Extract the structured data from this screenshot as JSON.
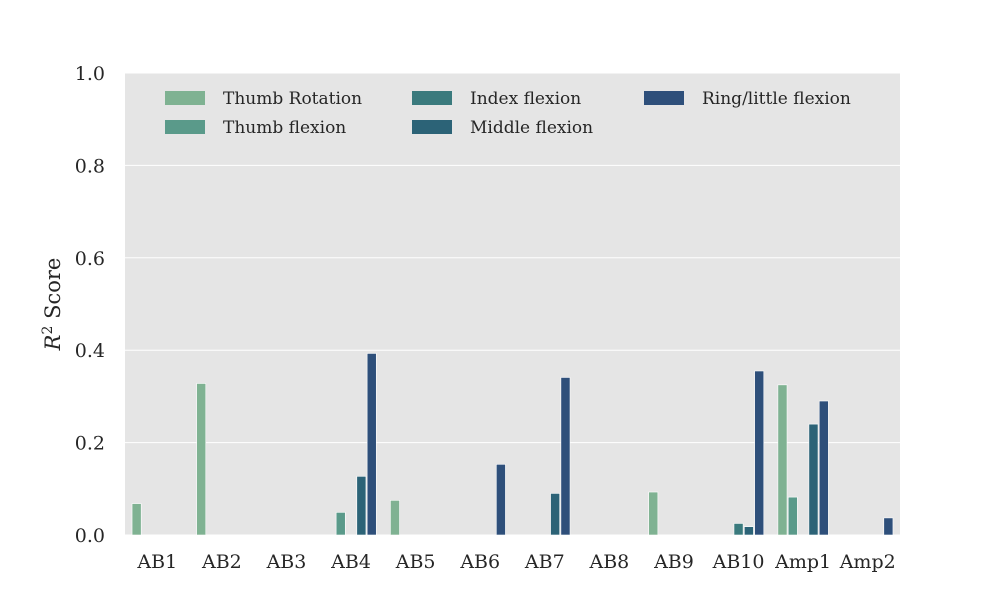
{
  "chart_data": {
    "type": "bar",
    "ylabel_main": "R",
    "ylabel_sup": "2",
    "ylabel_rest": " Score",
    "ylim": [
      0,
      1.0
    ],
    "yticks": [
      "0.0",
      "0.2",
      "0.4",
      "0.6",
      "0.8",
      "1.0"
    ],
    "grid": true,
    "legend_placement": "top",
    "categories": [
      "AB1",
      "AB2",
      "AB3",
      "AB4",
      "AB5",
      "AB6",
      "AB7",
      "AB8",
      "AB9",
      "AB10",
      "Amp1",
      "Amp2"
    ],
    "series": [
      {
        "name": "Thumb Rotation",
        "color": "#7fb292",
        "values": [
          0.068,
          0.328,
          0,
          0,
          0.075,
          0,
          0,
          0,
          0.093,
          0,
          0.325,
          0
        ]
      },
      {
        "name": "Thumb flexion",
        "color": "#5a9a8a",
        "values": [
          0,
          0,
          0,
          0.049,
          0,
          0,
          0,
          0,
          0,
          0,
          0.082,
          0
        ]
      },
      {
        "name": "Index flexion",
        "color": "#3a7a7d",
        "values": [
          0,
          0,
          0,
          0,
          0,
          0,
          0,
          0,
          0,
          0.025,
          0,
          0
        ]
      },
      {
        "name": "Middle flexion",
        "color": "#2c6377",
        "values": [
          0,
          0,
          0,
          0.127,
          0,
          0,
          0.09,
          0,
          0,
          0.018,
          0.24,
          0
        ]
      },
      {
        "name": "Ring/little flexion",
        "color": "#2e4f7a",
        "values": [
          0,
          0,
          0,
          0.393,
          0,
          0.153,
          0.341,
          0,
          0,
          0.355,
          0.29,
          0.037
        ]
      }
    ]
  }
}
